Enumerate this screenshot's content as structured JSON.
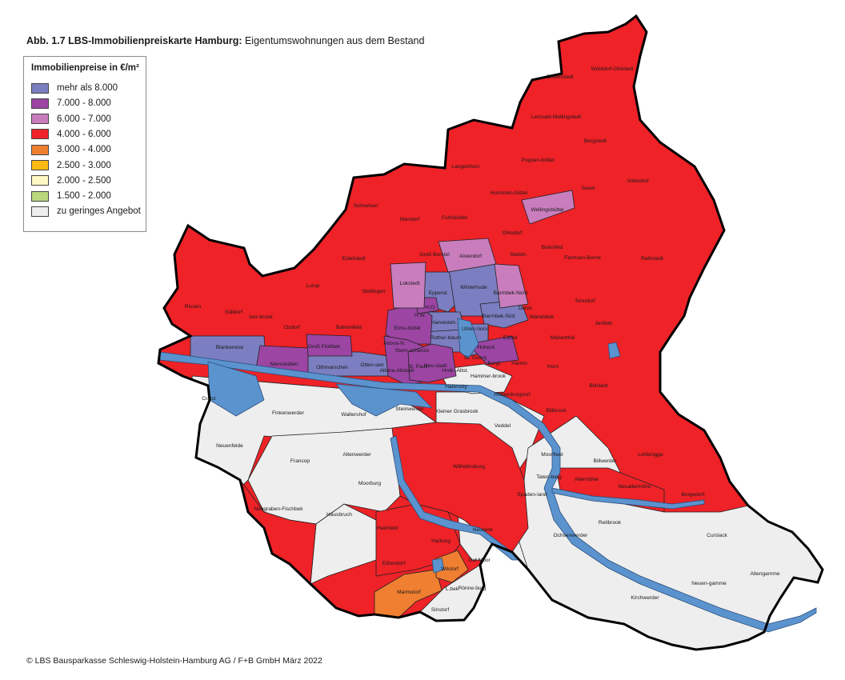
{
  "title": {
    "bold": "Abb. 1.7 LBS-Immobilienpreiskarte Hamburg:",
    "rest": " Eigentumswohnungen aus dem Bestand"
  },
  "legend": {
    "title": "Immobilienpreise in €/m²",
    "items": [
      {
        "label": "mehr als 8.000",
        "color": "#7b7ec0"
      },
      {
        "label": "7.000 - 8.000",
        "color": "#9c45a3"
      },
      {
        "label": "6.000 - 7.000",
        "color": "#c97dbd"
      },
      {
        "label": "4.000 - 6.000",
        "color": "#ee2227"
      },
      {
        "label": "3.000 - 4.000",
        "color": "#f07f31"
      },
      {
        "label": "2.500 - 3.000",
        "color": "#fdb913"
      },
      {
        "label": "2.000 - 2.500",
        "color": "#fff8c4"
      },
      {
        "label": "1.500 - 2.000",
        "color": "#b9d77d"
      },
      {
        "label": "zu geringes Angebot",
        "color": "#eeeeee"
      }
    ]
  },
  "colors": {
    "water": "#5b93cf",
    "red": "#ee2227",
    "grey": "#eeeeee",
    "purple_dark": "#9c45a3",
    "purple_light": "#c97dbd",
    "blue_violet": "#7b7ec0",
    "orange": "#f07f31"
  },
  "districts": {
    "duvenstedt": "Duvenstedt",
    "wohldorf": "Wohldorf-Ohlstedt",
    "lemsahl": "Lemsahl-Mellingstedt",
    "bergstedt": "Bergstedt",
    "poppenbuettel": "Poppen-büttel",
    "langenhorn": "Langenhorn",
    "hummelsbuettel": "Hummels-büttel",
    "wellingsbuettel": "Wellingsbüttel",
    "sasel": "Sasel",
    "volksdorf": "Volksdorf",
    "schnelsen": "Schnelsen",
    "niendorf": "Niendorf",
    "fuhlsbuettel": "Fuhlsbüttel",
    "ohlsdorf": "Ohlsdorf",
    "gross_borstel": "Groß Borstel",
    "alsterdorf": "Alsterdorf",
    "bramfeld": "Bramfeld",
    "steilshoop": "Steilsh.",
    "eidelstedt": "Eidelstedt",
    "rahlstedt": "Rahlstedt",
    "farmsen": "Farmsen-Berne",
    "lokstedt": "Lokstedt",
    "winterhude": "Winterhude",
    "barmbek_nord": "Barmbek-Nord",
    "stellingen": "Stellingen",
    "eppend": "Eppend.",
    "lurup": "Lurup",
    "tonndorf": "Tonndorf",
    "rissen": "Rissen",
    "suelldorf": "Sülldorf",
    "iserbrook": "Iser-brook",
    "osdorf": "Osdorf",
    "bahrenfeld": "Bahrenfeld",
    "ho": "H.O.",
    "hw": "H.W.",
    "eimsbuettel": "Eims-büttel",
    "harvesteh": "Harvesteh.",
    "barmbek_sued": "Barmbek-Süd",
    "dulsb": "Dulsb.",
    "wandsbek": "Wandsbek",
    "jenfeld": "Jenfeld",
    "marienthal": "Marienthal",
    "uhlenhorst": "Uhlen-horst",
    "rotherbaum": "Rother-baum",
    "eilbek": "Eilbek",
    "blankenese": "Blankenese",
    "nienstedten": "Nienstedten",
    "gross_flottbek": "Groß Flottbek",
    "othmarschen": "Othmarschen",
    "ottensen": "Otten-sen",
    "altona_nord": "Altona-N.",
    "sternschanze": "Stern-schanze",
    "altona_altstadt": "Altona-Altstadt",
    "st_pauli": "St. Pauli",
    "neustadt": "Neu-stadt",
    "hohenfelde": "Hohenf.",
    "st_georg": "St. Georg",
    "borgf": "Borgf.",
    "hamm": "Hamm",
    "horn": "Horn",
    "billstedt": "Billstedt",
    "hamburg_altstadt": "Hmb.-Altst.",
    "hammerbrook": "Hammer-brook",
    "hafencity": "Hafencity",
    "rothenburgsort": "Rothenburgsort",
    "billbrook": "Billbrook",
    "cranz": "Cranz",
    "finkenwerder": "Finkenwerder",
    "waltershof": "Waltershof",
    "steinwerder": "Steinwerder",
    "kleiner_grasbrook": "Kleiner Grasbrook",
    "veddel": "Veddel",
    "neuenfelde": "Neuenfelde",
    "francop": "Francop",
    "altenwerder": "Altenwerder",
    "moorburg": "Moorburg",
    "wilhelmsburg": "Wilhelmsburg",
    "moorfleet": "Moorfleet",
    "billwerder": "Billwerder",
    "lohbruegge": "Lohbrügge",
    "tatenberg": "Taten-berg",
    "allermoehe": "Allermöhe",
    "neuallermoehe": "Neuallermöhe",
    "bergedorf": "Bergedorf",
    "spadenland": "Spaden-land",
    "neugraben": "Neugraben-Fischbek",
    "hausbruch": "Hausbruch",
    "heimfeld": "Heimfeld",
    "neuland": "Neuland",
    "reitbrook": "Reitbrook",
    "ochsenwerder": "Ochsenwerder",
    "curslack": "Curslack",
    "harburg": "Harburg",
    "gut_moor": "Gut Moor",
    "eissendorf": "Eißendorf",
    "wilstorf": "Wilstorf",
    "altengamme": "Altengamme",
    "neuengamme": "Neuen-gamme",
    "marmstorf": "Marmstorf",
    "l_bek": "L.bek",
    "roennenburg": "Rönne-burg",
    "kirchwerder": "Kirchwerder",
    "sinstorf": "Sinstorf"
  },
  "credit": "© LBS Bausparkasse Schleswig-Holstein-Hamburg AG / F+B GmbH März 2022"
}
